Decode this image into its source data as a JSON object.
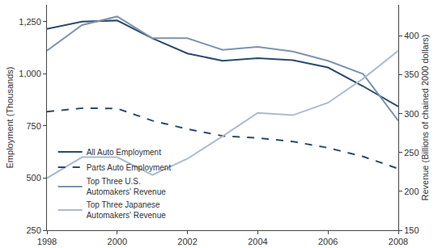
{
  "chart_data": {
    "type": "line",
    "x": [
      1998,
      1999,
      2000,
      2001,
      2002,
      2003,
      2004,
      2005,
      2006,
      2007,
      2008
    ],
    "xlim": [
      1998,
      2008
    ],
    "xticks": [
      1998,
      2000,
      2002,
      2004,
      2006,
      2008
    ],
    "y_label": "Employment (Thousands)",
    "y2_label": "Revenue (Billions of chained 2000 dollars)",
    "ylim": [
      250,
      1330
    ],
    "yticks": [
      250,
      500,
      750,
      {
        "value": 1000,
        "label": "1,000"
      },
      {
        "value": 1250,
        "label": "1,250"
      }
    ],
    "y2lim": [
      150,
      440
    ],
    "y2ticks": [
      150,
      200,
      250,
      300,
      350,
      400
    ],
    "grid": false,
    "legend": "lower left",
    "series": [
      {
        "name": "All Auto Employment",
        "color": "#2b4a6e",
        "line_style": "solid",
        "axis": "y",
        "values": [
          1215,
          1250,
          1255,
          1170,
          1097,
          1062,
          1075,
          1065,
          1030,
          940,
          843
        ]
      },
      {
        "name": "Parts Auto Employment",
        "color": "#2b4a6e",
        "line_style": "dash",
        "axis": "y",
        "values": [
          818,
          835,
          833,
          775,
          735,
          702,
          692,
          675,
          645,
          603,
          545
        ]
      },
      {
        "name": "Top Three U.S.\nAutomakers' Revenue",
        "color": "#7f93ab",
        "line_style": "solid",
        "axis": "y2",
        "values": [
          381,
          414,
          425,
          397,
          397,
          382,
          386,
          380,
          368,
          351,
          291
        ]
      },
      {
        "name": "Top Three Japanese\nAutomakers' Revenue",
        "color": "#aabbcf",
        "line_style": "solid",
        "axis": "y2",
        "values": [
          217,
          244,
          244,
          221,
          242,
          271,
          301,
          298,
          314,
          345,
          381
        ]
      }
    ]
  }
}
